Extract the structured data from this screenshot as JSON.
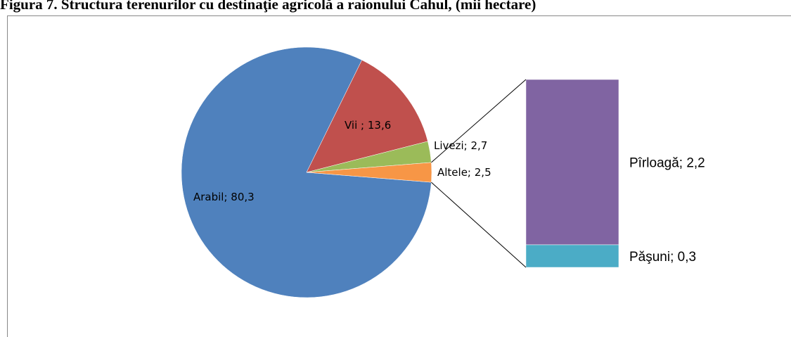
{
  "chart_data": {
    "type": "pie-of-bar",
    "title": "Figura 7. Structura terenurilor cu destinaţie agricolă a raionului Cahul, (mii hectare)",
    "pie": {
      "values": [
        80.3,
        13.6,
        2.7,
        2.5
      ],
      "value_labels": [
        "Arabil; 80,3",
        "Vii ; 13,6",
        "Livezi; 2,7",
        "Altele; 2,5"
      ],
      "colors": [
        "#4f81bd",
        "#c0504d",
        "#9bbb59",
        "#f79646"
      ]
    },
    "bar": {
      "values": [
        2.2,
        0.3
      ],
      "value_labels": [
        "Pîrloagă; 2,2",
        "Păşuni; 0,3"
      ],
      "colors": [
        "#8064a2",
        "#4bacc6"
      ]
    }
  }
}
